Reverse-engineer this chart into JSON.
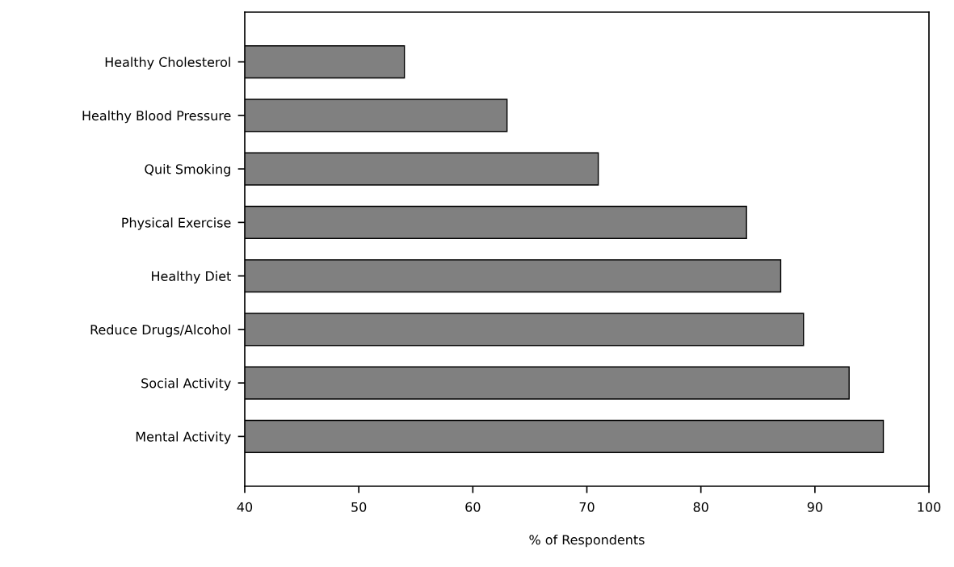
{
  "chart_data": {
    "type": "bar",
    "orientation": "horizontal",
    "xlabel": "% of Respondents",
    "categories": [
      "Healthy Cholesterol",
      "Healthy Blood Pressure",
      "Quit Smoking",
      "Physical Exercise",
      "Healthy Diet",
      "Reduce Drugs/Alcohol",
      "Social Activity",
      "Mental Activity"
    ],
    "values": [
      54,
      63,
      71,
      84,
      87,
      89,
      93,
      96
    ],
    "color": "#808080",
    "xlim": [
      40,
      100
    ],
    "xticks": [
      40,
      50,
      60,
      70,
      80,
      90,
      100
    ],
    "grid": false
  }
}
